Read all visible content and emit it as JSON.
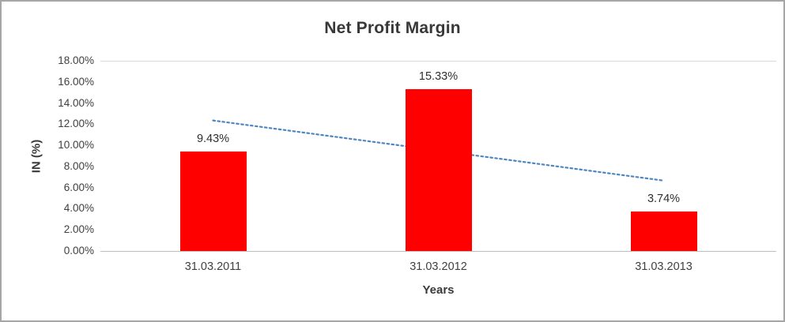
{
  "chart_data": {
    "type": "bar",
    "title": "Net Profit Margin",
    "xlabel": "Years",
    "ylabel": "IN (%)",
    "categories": [
      "31.03.2011",
      "31.03.2012",
      "31.03.2013"
    ],
    "values": [
      9.43,
      15.33,
      3.74
    ],
    "data_labels": [
      "9.43%",
      "15.33%",
      "3.74%"
    ],
    "ylim": [
      0,
      18
    ],
    "ytick_step": 2,
    "ytick_labels": [
      "0.00%",
      "2.00%",
      "4.00%",
      "6.00%",
      "8.00%",
      "10.00%",
      "12.00%",
      "14.00%",
      "16.00%",
      "18.00%"
    ],
    "grid": false,
    "legend": "none",
    "bar_color": "#FF0000",
    "trendline": {
      "type": "linear",
      "style": "dotted",
      "color": "#4E87BE",
      "start_value": 12.35,
      "end_value": 6.66
    }
  }
}
